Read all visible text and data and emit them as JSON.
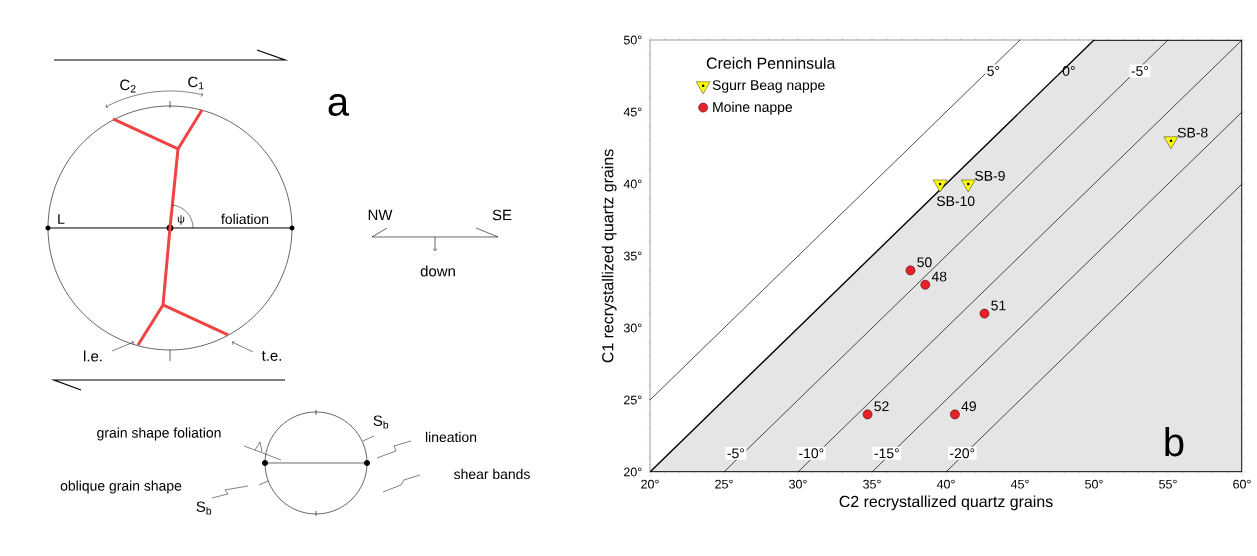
{
  "chart_data": [
    {
      "type": "other",
      "annotations": [
        "a",
        "C$_{2}$",
        "C$_{1}$",
        "L",
        "ψ",
        "foliation",
        "l.e.",
        "t.e.",
        "NW",
        "SE",
        "down",
        "grain shape foliation",
        "lineation",
        "S$_{b}$",
        "shear bands",
        "oblique grain shape",
        "S$_{b}$"
      ]
    },
    {
      "type": "scatter",
      "xlabel": "C2 recrystallized quartz grains",
      "ylabel": "C1 recrystallized quartz grains",
      "legend_title": "Creich Penninsula",
      "legend": "top left",
      "xlim": [
        20,
        60
      ],
      "ylim": [
        20,
        50
      ],
      "xticks": [
        {
          "value": 20,
          "label": "20°"
        },
        {
          "value": 25,
          "label": "25°"
        },
        {
          "value": 30,
          "label": "30°"
        },
        {
          "value": 35,
          "label": "35°"
        },
        {
          "value": 40,
          "label": "40°"
        },
        {
          "value": 45,
          "label": "45°"
        },
        {
          "value": 50,
          "label": "50°"
        },
        {
          "value": 55,
          "label": "55°"
        },
        {
          "value": 60,
          "label": "60°"
        }
      ],
      "yticks": [
        {
          "value": 20,
          "label": "20°"
        },
        {
          "value": 25,
          "label": "25°"
        },
        {
          "value": 30,
          "label": "30°"
        },
        {
          "value": 35,
          "label": "35°"
        },
        {
          "value": 40,
          "label": "40°"
        },
        {
          "value": 45,
          "label": "45°"
        },
        {
          "value": 50,
          "label": "50°"
        }
      ],
      "series": [
        {
          "type": "area",
          "color": "#e5e5e5",
          "x": [
            20,
            50,
            60
          ],
          "values": [
            20,
            50,
            50
          ]
        },
        {
          "type": "line",
          "color": "#000000",
          "x": [
            20,
            45
          ],
          "values": [
            25,
            50
          ]
        },
        {
          "type": "line",
          "color": "#000000",
          "x": [
            25,
            55
          ],
          "values": [
            20,
            50
          ]
        },
        {
          "type": "line",
          "color": "#000000",
          "x": [
            30,
            60
          ],
          "values": [
            20,
            50
          ]
        },
        {
          "type": "line",
          "color": "#000000",
          "x": [
            35,
            60
          ],
          "values": [
            20,
            45
          ]
        },
        {
          "type": "line",
          "color": "#000000",
          "x": [
            40,
            60
          ],
          "values": [
            20,
            40
          ]
        },
        {
          "type": "scatter",
          "name": "Sgurr Beag nappe",
          "color": "#ffff00",
          "marker": "triangle",
          "x": [
            39.6,
            41.5,
            55.2
          ],
          "values": [
            40,
            40,
            43
          ]
        },
        {
          "type": "scatter",
          "name": "Moine nappe",
          "color": "#e8202a",
          "marker": "circle",
          "x": [
            37.6,
            38.6,
            42.6,
            34.7,
            40.6
          ],
          "values": [
            34,
            33,
            31,
            24,
            24
          ]
        }
      ],
      "annotations": [
        {
          "text": "5°",
          "x": 43.2,
          "y": 47.85
        },
        {
          "text": "0°",
          "x": 48.3,
          "y": 47.85
        },
        {
          "text": "-5°",
          "x": 53.1,
          "y": 47.85
        },
        {
          "text": "-5°",
          "x": 25.8,
          "y": 21.3
        },
        {
          "text": "-10°",
          "x": 30.9,
          "y": 21.3
        },
        {
          "text": "-15°",
          "x": 36.0,
          "y": 21.3
        },
        {
          "text": "-20°",
          "x": 41.1,
          "y": 21.3
        },
        {
          "text": "50",
          "x": 37.6,
          "y": 34
        },
        {
          "text": "48",
          "x": 38.6,
          "y": 33
        },
        {
          "text": "51",
          "x": 42.6,
          "y": 31
        },
        {
          "text": "52",
          "x": 34.7,
          "y": 24
        },
        {
          "text": "49",
          "x": 40.6,
          "y": 24
        },
        {
          "text": "SB-10",
          "x": 39.6,
          "y": 40
        },
        {
          "text": "SB-9",
          "x": 41.5,
          "y": 40
        },
        {
          "text": "SB-8",
          "x": 55.2,
          "y": 43
        },
        "b"
      ]
    }
  ]
}
